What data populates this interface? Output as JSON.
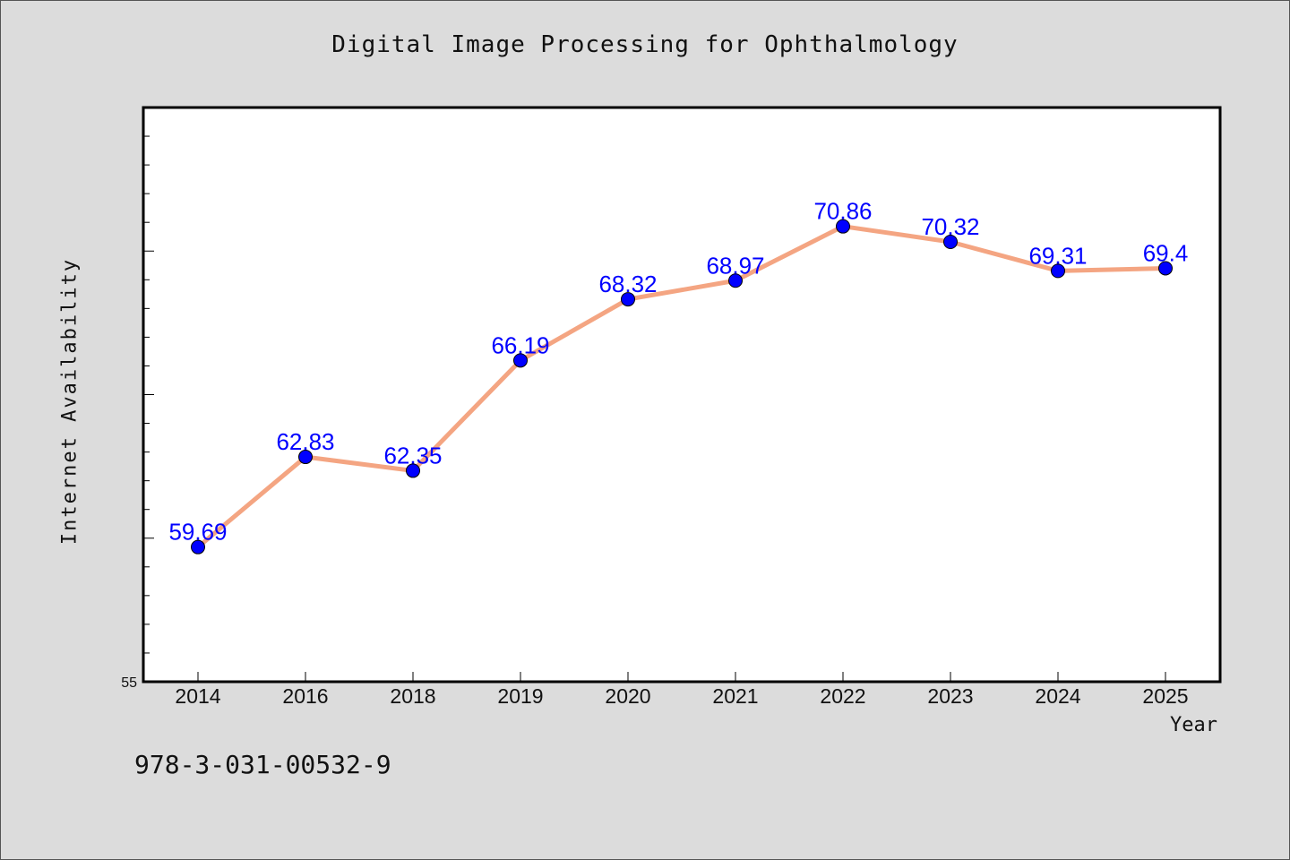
{
  "chart_data": {
    "type": "line",
    "title": "Digital  Image  Processing  for  Ophthalmology",
    "xlabel": "Year",
    "ylabel": "Internet Availability",
    "categories": [
      "2014",
      "2016",
      "2018",
      "2019",
      "2020",
      "2021",
      "2022",
      "2023",
      "2024",
      "2025"
    ],
    "series": [
      {
        "values": [
          59.69,
          62.83,
          62.35,
          66.19,
          68.32,
          68.97,
          70.86,
          70.32,
          69.31,
          69.4
        ],
        "data_labels": [
          "59.69",
          "62.83",
          "62.35",
          "66.19",
          "68.32",
          "68.97",
          "70.86",
          "70.32",
          "69.31",
          "69.4"
        ]
      }
    ],
    "ylim": [
      55,
      75
    ],
    "yticks_labeled": [
      "55"
    ],
    "grid": false,
    "legend": "none",
    "colors": {
      "line": "#f4a582",
      "marker": "#0000ff",
      "label": "#0000ff",
      "plot_bg": "#ffffff",
      "page_bg": "#dcdcdc"
    }
  },
  "footer": {
    "isbn": "978-3-031-00532-9"
  }
}
